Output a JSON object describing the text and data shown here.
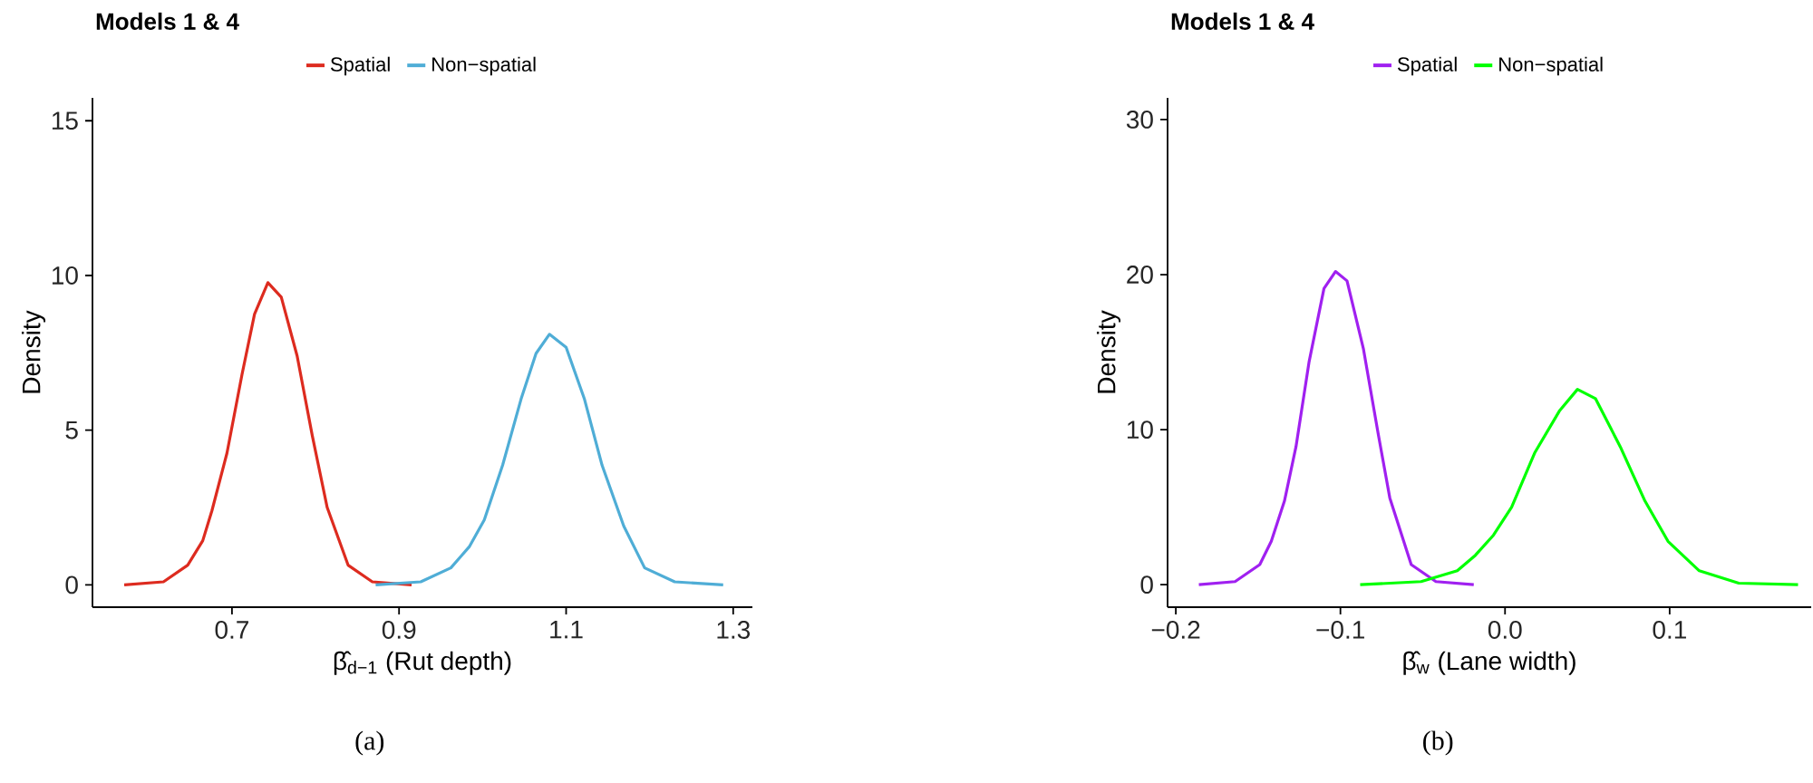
{
  "chart_data": [
    {
      "type": "line",
      "title": "Models 1  & 4",
      "xlabel": "β̂$_{d−1}$ (Rut depth)",
      "ylabel": "Density",
      "annotations": [
        "(a)"
      ],
      "legend": "top",
      "marker": "none",
      "line_style": "solid",
      "xlim": [
        0.533,
        1.323
      ],
      "ylim": [
        -0.72,
        15.74
      ],
      "xticks": [
        0.7,
        0.9,
        1.1,
        1.3
      ],
      "yticks": [
        0,
        5,
        10,
        15
      ],
      "series": [
        {
          "name": "Spatial",
          "color": "#dd2b1f",
          "x": [
            0.571,
            0.618,
            0.647,
            0.665,
            0.676,
            0.694,
            0.712,
            0.727,
            0.743,
            0.759,
            0.778,
            0.796,
            0.814,
            0.839,
            0.868,
            0.915
          ],
          "values": [
            0,
            0.1,
            0.64,
            1.43,
            2.4,
            4.26,
            6.8,
            8.75,
            9.77,
            9.3,
            7.4,
            4.84,
            2.5,
            0.64,
            0.1,
            0
          ]
        },
        {
          "name": "Non−spatial",
          "color": "#4fadd6",
          "x": [
            0.872,
            0.926,
            0.962,
            0.984,
            1.002,
            1.024,
            1.046,
            1.064,
            1.08,
            1.1,
            1.122,
            1.143,
            1.169,
            1.194,
            1.23,
            1.288
          ],
          "values": [
            0,
            0.1,
            0.55,
            1.23,
            2.1,
            3.87,
            6.0,
            7.48,
            8.1,
            7.68,
            6.0,
            3.87,
            1.9,
            0.55,
            0.1,
            0
          ]
        }
      ]
    },
    {
      "type": "line",
      "title": "Models 1  & 4",
      "xlabel": "β̂$_{w}$ (Lane width)",
      "ylabel": "Density",
      "annotations": [
        "(b)"
      ],
      "legend": "top",
      "marker": "none",
      "line_style": "solid",
      "xlim": [
        -0.205,
        0.186
      ],
      "ylim": [
        -1.45,
        31.4
      ],
      "xticks": [
        {
          "value": -0.2,
          "label": "−0.2"
        },
        {
          "value": -0.1,
          "label": "−0.1"
        },
        {
          "value": 0.0,
          "label": "0.0"
        },
        0.1
      ],
      "yticks": [
        0,
        10,
        20,
        30
      ],
      "series": [
        {
          "name": "Spatial",
          "color": "#a020f0",
          "x": [
            -0.186,
            -0.164,
            -0.149,
            -0.142,
            -0.134,
            -0.127,
            -0.119,
            -0.11,
            -0.103,
            -0.096,
            -0.086,
            -0.077,
            -0.07,
            -0.057,
            -0.042,
            -0.019
          ],
          "values": [
            0,
            0.2,
            1.3,
            2.8,
            5.4,
            8.9,
            14.4,
            19.1,
            20.2,
            19.6,
            15.2,
            9.7,
            5.6,
            1.3,
            0.2,
            0
          ]
        },
        {
          "name": "Non−spatial",
          "color": "#00ff00",
          "x": [
            -0.088,
            -0.051,
            -0.029,
            -0.018,
            -0.007,
            0.004,
            0.018,
            0.033,
            0.044,
            0.055,
            0.07,
            0.085,
            0.099,
            0.118,
            0.142,
            0.178
          ],
          "values": [
            0,
            0.2,
            0.9,
            1.9,
            3.2,
            5.0,
            8.5,
            11.2,
            12.6,
            12.0,
            8.9,
            5.4,
            2.8,
            0.9,
            0.1,
            0
          ]
        }
      ]
    }
  ]
}
